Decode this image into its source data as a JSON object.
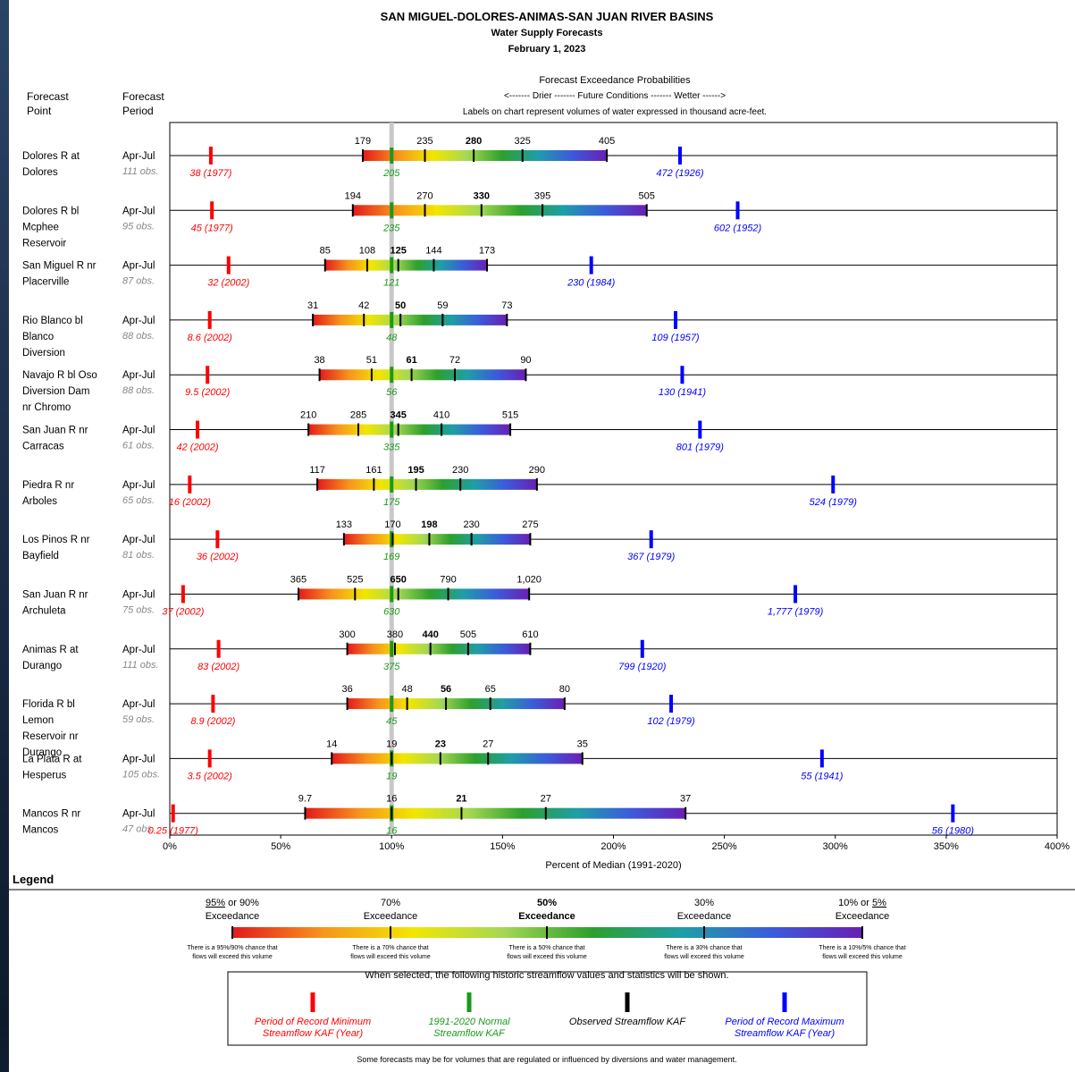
{
  "header": {
    "title": "SAN MIGUEL-DOLORES-ANIMAS-SAN JUAN RIVER BASINS",
    "subtitle": "Water Supply Forecasts",
    "date": "February 1, 2023"
  },
  "columns": {
    "point": [
      "Forecast",
      "Point"
    ],
    "period": [
      "Forecast",
      "Period"
    ]
  },
  "prob_header": {
    "title": "Forecast Exceedance Probabilities",
    "conditions": "<------- Drier -------    Future Conditions    ------- Wetter ------>",
    "note": "Labels on chart represent volumes of water expressed in thousand acre-feet."
  },
  "colors": {
    "minimum": "#ff0000",
    "normal": "#1a9a1a",
    "observed": "#000000",
    "maximum": "#0000ff",
    "gradient": [
      "#e31a1c",
      "#f7941d",
      "#f2e600",
      "#a6d854",
      "#2ca02c",
      "#1f9ea8",
      "#3b5bdb",
      "#6a1fb3"
    ]
  },
  "chart_data": {
    "type": "bar",
    "xlabel": "Percent of Median (1991-2020)",
    "xlim": [
      0,
      400
    ],
    "xticks": [
      0,
      50,
      100,
      150,
      200,
      250,
      300,
      350,
      400
    ],
    "xtick_labels": [
      "0%",
      "50%",
      "100%",
      "150%",
      "200%",
      "250%",
      "300%",
      "350%",
      "400%"
    ],
    "series": [
      {
        "point": [
          "Dolores R at",
          "Dolores"
        ],
        "period": "Apr-Jul",
        "obs": "111 obs.",
        "percentiles": [
          87,
          115,
          137,
          159,
          197
        ],
        "labels": [
          "179",
          "235",
          "280",
          "325",
          "405"
        ],
        "normal": {
          "pct": 100,
          "label": "205"
        },
        "min": {
          "pct": 18.5,
          "label": "38 (1977)"
        },
        "max": {
          "pct": 230,
          "label": "472 (1926)"
        }
      },
      {
        "point": [
          "Dolores R bl",
          "Mcphee",
          "Reservoir"
        ],
        "period": "Apr-Jul",
        "obs": "95 obs.",
        "percentiles": [
          82.5,
          115,
          140.5,
          168,
          215
        ],
        "labels": [
          "194",
          "270",
          "330",
          "395",
          "505"
        ],
        "normal": {
          "pct": 100,
          "label": "235"
        },
        "min": {
          "pct": 19,
          "label": "45 (1977)"
        },
        "max": {
          "pct": 256,
          "label": "602 (1952)"
        }
      },
      {
        "point": [
          "San Miguel R nr",
          "Placerville"
        ],
        "period": "Apr-Jul",
        "obs": "87 obs.",
        "percentiles": [
          70,
          89,
          103,
          119,
          143
        ],
        "labels": [
          "85",
          "108",
          "125",
          "144",
          "173"
        ],
        "normal": {
          "pct": 100,
          "label": "121"
        },
        "min": {
          "pct": 26.5,
          "label": "32 (2002)"
        },
        "max": {
          "pct": 190,
          "label": "230 (1984)"
        }
      },
      {
        "point": [
          "Rio Blanco bl",
          "Blanco",
          "Diversion"
        ],
        "period": "Apr-Jul",
        "obs": "88 obs.",
        "percentiles": [
          64.5,
          87.5,
          104,
          123,
          152
        ],
        "labels": [
          "31",
          "42",
          "50",
          "59",
          "73"
        ],
        "normal": {
          "pct": 100,
          "label": "48"
        },
        "min": {
          "pct": 18,
          "label": "8.6 (2002)"
        },
        "max": {
          "pct": 228,
          "label": "109 (1957)"
        }
      },
      {
        "point": [
          "Navajo R bl Oso",
          "Diversion Dam",
          "nr Chromo"
        ],
        "period": "Apr-Jul",
        "obs": "88 obs.",
        "percentiles": [
          67.5,
          91,
          109,
          128.5,
          160.5
        ],
        "labels": [
          "38",
          "51",
          "61",
          "72",
          "90"
        ],
        "normal": {
          "pct": 100,
          "label": "56"
        },
        "min": {
          "pct": 17,
          "label": "9.5 (2002)"
        },
        "max": {
          "pct": 231,
          "label": "130 (1941)"
        }
      },
      {
        "point": [
          "San Juan R nr",
          "Carracas"
        ],
        "period": "Apr-Jul",
        "obs": "61 obs.",
        "percentiles": [
          62.5,
          85,
          103,
          122.5,
          153.5
        ],
        "labels": [
          "210",
          "285",
          "345",
          "410",
          "515"
        ],
        "normal": {
          "pct": 100,
          "label": "335"
        },
        "min": {
          "pct": 12.5,
          "label": "42 (2002)"
        },
        "max": {
          "pct": 239,
          "label": "801 (1979)"
        }
      },
      {
        "point": [
          "Piedra R nr",
          "Arboles"
        ],
        "period": "Apr-Jul",
        "obs": "65 obs.",
        "percentiles": [
          66.5,
          92,
          111,
          131,
          165.5
        ],
        "labels": [
          "117",
          "161",
          "195",
          "230",
          "290"
        ],
        "normal": {
          "pct": 100,
          "label": "175"
        },
        "min": {
          "pct": 9,
          "label": "16 (2002)"
        },
        "max": {
          "pct": 299,
          "label": "524 (1979)"
        }
      },
      {
        "point": [
          "Los Pinos R nr",
          "Bayfield"
        ],
        "period": "Apr-Jul",
        "obs": "81 obs.",
        "percentiles": [
          78.5,
          100.5,
          117,
          136,
          162.5
        ],
        "labels": [
          "133",
          "170",
          "198",
          "230",
          "275"
        ],
        "normal": {
          "pct": 100,
          "label": "169"
        },
        "min": {
          "pct": 21.5,
          "label": "36 (2002)"
        },
        "max": {
          "pct": 217,
          "label": "367 (1979)"
        }
      },
      {
        "point": [
          "San Juan R nr",
          "Archuleta"
        ],
        "period": "Apr-Jul",
        "obs": "75 obs.",
        "percentiles": [
          58,
          83.5,
          103,
          125.5,
          162
        ],
        "labels": [
          "365",
          "525",
          "650",
          "790",
          "1,020"
        ],
        "normal": {
          "pct": 100,
          "label": "630"
        },
        "min": {
          "pct": 6,
          "label": "37 (2002)"
        },
        "max": {
          "pct": 282,
          "label": "1,777 (1979)"
        }
      },
      {
        "point": [
          "Animas R at",
          "Durango"
        ],
        "period": "Apr-Jul",
        "obs": "111 obs.",
        "percentiles": [
          80,
          101.5,
          117.5,
          134.5,
          162.5
        ],
        "labels": [
          "300",
          "380",
          "440",
          "505",
          "610"
        ],
        "normal": {
          "pct": 100,
          "label": "375"
        },
        "min": {
          "pct": 22,
          "label": "83 (2002)"
        },
        "max": {
          "pct": 213,
          "label": "799 (1920)"
        }
      },
      {
        "point": [
          "Florida R bl",
          "Lemon",
          "Reservoir nr",
          "Durango"
        ],
        "period": "Apr-Jul",
        "obs": "59 obs.",
        "percentiles": [
          80,
          107,
          124.5,
          144.5,
          178
        ],
        "labels": [
          "36",
          "48",
          "56",
          "65",
          "80"
        ],
        "normal": {
          "pct": 100,
          "label": "45"
        },
        "min": {
          "pct": 19.5,
          "label": "8.9 (2002)"
        },
        "max": {
          "pct": 226,
          "label": "102 (1979)"
        }
      },
      {
        "point": [
          "La Plata R at",
          "Hesperus"
        ],
        "period": "Apr-Jul",
        "obs": "105 obs.",
        "percentiles": [
          73,
          100,
          122,
          143.5,
          186
        ],
        "labels": [
          "14",
          "19",
          "23",
          "27",
          "35"
        ],
        "normal": {
          "pct": 100,
          "label": "19"
        },
        "min": {
          "pct": 18,
          "label": "3.5 (2002)"
        },
        "max": {
          "pct": 294,
          "label": "55 (1941)"
        }
      },
      {
        "point": [
          "Mancos R nr",
          "Mancos"
        ],
        "period": "Apr-Jul",
        "obs": "47 obs.",
        "percentiles": [
          61,
          100,
          131.5,
          169.5,
          232.5
        ],
        "labels": [
          "9.7",
          "16",
          "21",
          "27",
          "37"
        ],
        "normal": {
          "pct": 100,
          "label": "16"
        },
        "min": {
          "pct": 1.5,
          "label": "0.25 (1977)"
        },
        "max": {
          "pct": 353,
          "label": "56 (1980)"
        }
      }
    ]
  },
  "legend": {
    "title": "Legend",
    "exceedance": [
      {
        "top": "95% or 90%",
        "top_u": "95%",
        "top_rest": " or 90%",
        "bottom": "Exceedance",
        "desc": [
          "There is a 95%/90% chance that",
          "flows will exceed this volume"
        ]
      },
      {
        "top": "70%",
        "bottom": "Exceedance",
        "desc": [
          "There is a 70% chance that",
          "flows will exceed this volume"
        ]
      },
      {
        "top": "50%",
        "bottom": "Exceedance",
        "desc": [
          "There is a 50% chance that",
          "flows will exceed this volume"
        ]
      },
      {
        "top": "30%",
        "bottom": "Exceedance",
        "desc": [
          "There is a 30% chance that",
          "flows will exceed this volume"
        ]
      },
      {
        "top": "10% or 5%",
        "top_pre": "10% or ",
        "top_u": "5%",
        "bottom": "Exceedance",
        "desc": [
          "There is a 10%/5% chance that",
          "flows will exceed this volume"
        ]
      }
    ],
    "box_title": "When selected, the following historic streamflow values and statistics will be shown.",
    "items": [
      {
        "key": "minimum",
        "lines": [
          "Period of Record Minimum",
          "Streamflow KAF (Year)"
        ]
      },
      {
        "key": "normal",
        "lines": [
          "1991-2020 Normal",
          "Streamflow KAF"
        ]
      },
      {
        "key": "observed",
        "lines": [
          "Observed Streamflow KAF"
        ]
      },
      {
        "key": "maximum",
        "lines": [
          "Period of Record Maximum",
          "Streamflow KAF (Year)"
        ]
      }
    ],
    "footnote": "Some forecasts may be for volumes that are regulated or influenced by diversions and water management."
  }
}
